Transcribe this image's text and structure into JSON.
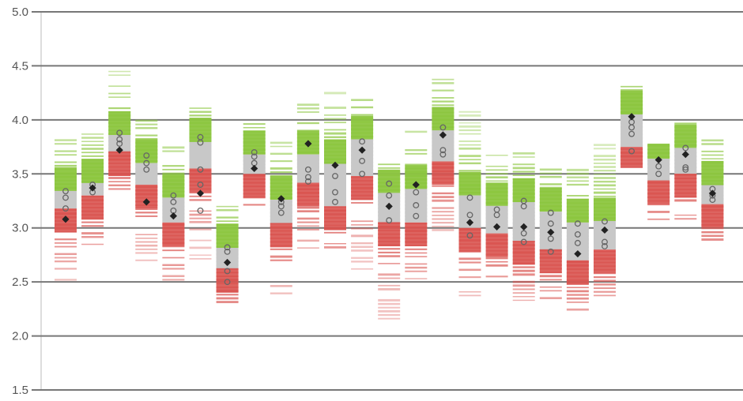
{
  "chart_data": {
    "type": "strip",
    "ylim": [
      1.5,
      5.0
    ],
    "yticks": [
      {
        "value": 1.5,
        "label": "1.5"
      },
      {
        "value": 2.0,
        "label": "2.0"
      },
      {
        "value": 2.5,
        "label": "2.5"
      },
      {
        "value": 3.0,
        "label": "3.0"
      },
      {
        "value": 3.5,
        "label": "3.5"
      },
      {
        "value": 4.0,
        "label": "4.0"
      },
      {
        "value": 4.5,
        "label": "4.5"
      },
      {
        "value": 5.0,
        "label": "5.0"
      }
    ],
    "grid": true,
    "colors": {
      "high": "#8cc63f",
      "mid": "#c8c8c8",
      "low": "#d9534f",
      "grid": "#777777",
      "marker": "#222222",
      "open_marker": "#666666"
    },
    "columns": [
      {
        "min": 2.52,
        "max": 3.82,
        "band_low": 3.18,
        "band_high": 3.34,
        "mean": 3.08,
        "points": [
          3.18,
          3.28,
          3.34
        ]
      },
      {
        "min": 2.78,
        "max": 3.88,
        "band_low": 3.3,
        "band_high": 3.42,
        "mean": 3.37,
        "points": [
          3.33,
          3.4
        ]
      },
      {
        "min": 3.36,
        "max": 4.48,
        "band_low": 3.7,
        "band_high": 3.86,
        "mean": 3.72,
        "points": [
          3.78,
          3.82,
          3.88
        ]
      },
      {
        "min": 2.7,
        "max": 4.01,
        "band_low": 3.4,
        "band_high": 3.6,
        "mean": 3.24,
        "points": [
          3.54,
          3.6,
          3.67
        ]
      },
      {
        "min": 2.52,
        "max": 3.76,
        "band_low": 3.05,
        "band_high": 3.28,
        "mean": 3.11,
        "points": [
          3.16,
          3.24,
          3.3
        ]
      },
      {
        "min": 2.68,
        "max": 4.13,
        "band_low": 3.55,
        "band_high": 3.8,
        "mean": 3.32,
        "points": [
          3.16,
          3.4,
          3.54,
          3.79,
          3.84
        ]
      },
      {
        "min": 2.28,
        "max": 3.22,
        "band_low": 2.62,
        "band_high": 2.82,
        "mean": 2.68,
        "points": [
          2.5,
          2.6,
          2.78,
          2.82
        ]
      },
      {
        "min": 3.18,
        "max": 3.99,
        "band_low": 3.5,
        "band_high": 3.68,
        "mean": 3.55,
        "points": [
          3.6,
          3.66,
          3.7
        ]
      },
      {
        "min": 2.36,
        "max": 3.82,
        "band_low": 3.04,
        "band_high": 3.26,
        "mean": 3.27,
        "points": [
          3.14,
          3.2,
          3.24
        ]
      },
      {
        "min": 2.78,
        "max": 4.26,
        "band_low": 3.42,
        "band_high": 3.68,
        "mean": 3.78,
        "points": [
          3.43,
          3.47,
          3.54
        ]
      },
      {
        "min": 2.82,
        "max": 4.25,
        "band_low": 3.2,
        "band_high": 3.6,
        "mean": 3.58,
        "points": [
          3.24,
          3.33,
          3.48
        ]
      },
      {
        "min": 2.62,
        "max": 4.21,
        "band_low": 3.48,
        "band_high": 3.82,
        "mean": 3.72,
        "points": [
          3.5,
          3.62,
          3.8
        ]
      },
      {
        "min": 2.16,
        "max": 3.6,
        "band_low": 3.05,
        "band_high": 3.32,
        "mean": 3.2,
        "points": [
          3.07,
          3.3,
          3.41
        ]
      },
      {
        "min": 2.53,
        "max": 3.9,
        "band_low": 3.05,
        "band_high": 3.36,
        "mean": 3.4,
        "points": [
          3.11,
          3.21,
          3.33
        ]
      },
      {
        "min": 2.98,
        "max": 4.39,
        "band_low": 3.62,
        "band_high": 3.9,
        "mean": 3.86,
        "points": [
          3.68,
          3.72,
          3.93
        ]
      },
      {
        "min": 2.34,
        "max": 4.1,
        "band_low": 3.0,
        "band_high": 3.3,
        "mean": 3.05,
        "points": [
          2.93,
          3.12,
          3.28
        ]
      },
      {
        "min": 2.55,
        "max": 3.72,
        "band_low": 2.95,
        "band_high": 3.2,
        "mean": 3.01,
        "points": [
          3.12,
          3.17
        ]
      },
      {
        "min": 2.33,
        "max": 3.7,
        "band_low": 2.88,
        "band_high": 3.24,
        "mean": 3.01,
        "points": [
          2.87,
          2.95,
          3.2,
          3.25
        ]
      },
      {
        "min": 2.35,
        "max": 3.56,
        "band_low": 2.8,
        "band_high": 3.15,
        "mean": 2.96,
        "points": [
          2.78,
          2.9,
          3.04,
          3.14
        ]
      },
      {
        "min": 2.21,
        "max": 3.56,
        "band_low": 2.7,
        "band_high": 3.05,
        "mean": 2.76,
        "points": [
          2.86,
          2.94,
          3.04
        ]
      },
      {
        "min": 2.34,
        "max": 3.78,
        "band_low": 2.8,
        "band_high": 3.06,
        "mean": 2.98,
        "points": [
          2.83,
          2.87,
          3.06
        ]
      },
      {
        "min": 3.56,
        "max": 4.32,
        "band_low": 3.75,
        "band_high": 4.05,
        "mean": 4.03,
        "points": [
          3.71,
          3.87,
          3.93,
          3.98
        ]
      },
      {
        "min": 3.08,
        "max": 3.78,
        "band_low": 3.44,
        "band_high": 3.64,
        "mean": 3.63,
        "points": [
          3.5,
          3.57
        ]
      },
      {
        "min": 3.05,
        "max": 4.02,
        "band_low": 3.5,
        "band_high": 3.74,
        "mean": 3.68,
        "points": [
          3.54,
          3.56,
          3.74
        ]
      },
      {
        "min": 2.79,
        "max": 3.82,
        "band_low": 3.22,
        "band_high": 3.4,
        "mean": 3.32,
        "points": [
          3.26,
          3.3,
          3.36
        ]
      }
    ]
  }
}
